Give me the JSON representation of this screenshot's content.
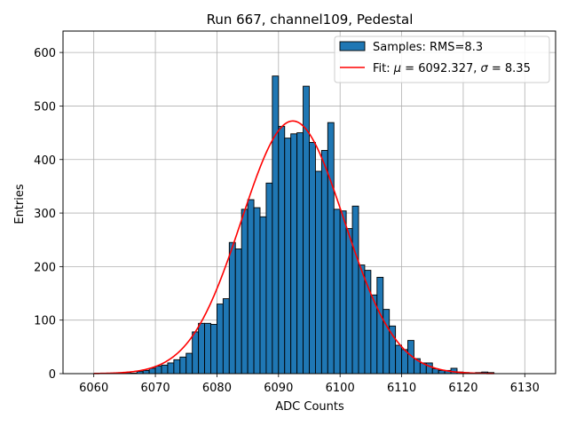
{
  "chart_data": {
    "type": "bar",
    "title": "Run 667, channel109, Pedestal",
    "xlabel": "ADC Counts",
    "ylabel": "Entries",
    "xlim": [
      6055,
      6135
    ],
    "ylim": [
      0,
      640
    ],
    "xticks": [
      6060,
      6070,
      6080,
      6090,
      6100,
      6110,
      6120,
      6130
    ],
    "yticks": [
      0,
      100,
      200,
      300,
      400,
      500,
      600
    ],
    "grid": true,
    "legend_position": "top-right",
    "bin_width": 1,
    "histogram": {
      "name": "Samples: RMS=8.3",
      "color": "#1f77b4",
      "bins": [
        6060,
        6061,
        6062,
        6063,
        6064,
        6065,
        6066,
        6067,
        6068,
        6069,
        6070,
        6071,
        6072,
        6073,
        6074,
        6075,
        6076,
        6077,
        6078,
        6079,
        6080,
        6081,
        6082,
        6083,
        6084,
        6085,
        6086,
        6087,
        6088,
        6089,
        6090,
        6091,
        6092,
        6093,
        6094,
        6095,
        6096,
        6097,
        6098,
        6099,
        6100,
        6101,
        6102,
        6103,
        6104,
        6105,
        6106,
        6107,
        6108,
        6109,
        6110,
        6111,
        6112,
        6113,
        6114,
        6115,
        6116,
        6117,
        6118,
        6119,
        6120,
        6121,
        6122,
        6123,
        6124
      ],
      "values": [
        0,
        0,
        0,
        0,
        0,
        2,
        1,
        4,
        6,
        10,
        14,
        16,
        20,
        26,
        31,
        38,
        78,
        94,
        94,
        92,
        130,
        140,
        245,
        233,
        307,
        325,
        310,
        293,
        356,
        556,
        462,
        440,
        448,
        450,
        537,
        432,
        378,
        417,
        469,
        307,
        304,
        271,
        313,
        203,
        193,
        147,
        180,
        120,
        89,
        53,
        45,
        62,
        28,
        20,
        20,
        9,
        6,
        6,
        10,
        3,
        2,
        1,
        2,
        3,
        2
      ]
    },
    "fit": {
      "name": "Fit: μ = 6092.327, σ = 8.35",
      "color": "#ff0000",
      "mu": 6092.327,
      "sigma": 8.35,
      "amplitude": 472,
      "x_range": [
        6060,
        6125
      ]
    },
    "legend": {
      "samples_label": "Samples: RMS=8.3",
      "fit_prefix": "Fit: ",
      "mu_symbol": "μ",
      "mu_value": " = 6092.327, ",
      "sigma_symbol": "σ",
      "sigma_value": " = 8.35"
    }
  }
}
